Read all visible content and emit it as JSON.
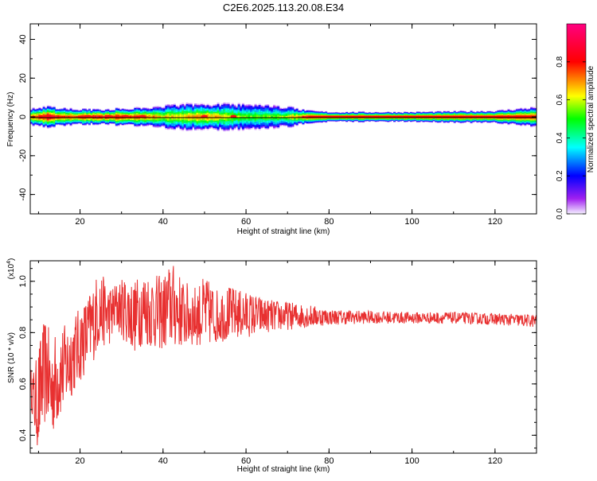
{
  "figure_title": "C2E6.2025.113.20.08.E34",
  "chart_data": [
    {
      "type": "heatmap",
      "xlabel": "Height of straight line (km)",
      "ylabel": "Frequency (Hz)",
      "xlim": [
        8,
        130
      ],
      "ylim": [
        -50,
        48
      ],
      "xticks": [
        "20",
        "40",
        "60",
        "80",
        "100",
        "120"
      ],
      "yticks": [
        "40",
        "20",
        "0",
        "-20",
        "-40"
      ],
      "colorbar": {
        "label": "Normalized spectral amplitude",
        "range": [
          0,
          1
        ],
        "ticks": [
          "0.0",
          "0.2",
          "0.4",
          "0.6",
          "0.8"
        ],
        "colors": [
          "#f4f0ff",
          "#a020f0",
          "#0000ff",
          "#00ffff",
          "#00ff00",
          "#ffff00",
          "#ff0000",
          "#ff0080"
        ]
      },
      "band": {
        "center_hz": 0,
        "profile": [
          {
            "x": 8,
            "halfwidth": 3.5,
            "peak": 0.75
          },
          {
            "x": 12,
            "halfwidth": 4.0,
            "peak": 0.95
          },
          {
            "x": 16,
            "halfwidth": 3.5,
            "peak": 0.8
          },
          {
            "x": 20,
            "halfwidth": 3.0,
            "peak": 0.85
          },
          {
            "x": 25,
            "halfwidth": 3.0,
            "peak": 0.9
          },
          {
            "x": 30,
            "halfwidth": 3.5,
            "peak": 0.85
          },
          {
            "x": 35,
            "halfwidth": 3.5,
            "peak": 0.8
          },
          {
            "x": 40,
            "halfwidth": 4.5,
            "peak": 0.65
          },
          {
            "x": 45,
            "halfwidth": 5.0,
            "peak": 0.7
          },
          {
            "x": 50,
            "halfwidth": 5.0,
            "peak": 0.75
          },
          {
            "x": 55,
            "halfwidth": 5.0,
            "peak": 0.65
          },
          {
            "x": 60,
            "halfwidth": 5.0,
            "peak": 0.55
          },
          {
            "x": 65,
            "halfwidth": 4.5,
            "peak": 0.55
          },
          {
            "x": 70,
            "halfwidth": 4.0,
            "peak": 0.6
          },
          {
            "x": 75,
            "halfwidth": 2.5,
            "peak": 0.9
          },
          {
            "x": 80,
            "halfwidth": 2.0,
            "peak": 0.95
          },
          {
            "x": 100,
            "halfwidth": 2.0,
            "peak": 0.95
          },
          {
            "x": 120,
            "halfwidth": 2.5,
            "peak": 0.95
          },
          {
            "x": 130,
            "halfwidth": 4.0,
            "peak": 0.9
          }
        ]
      }
    },
    {
      "type": "line",
      "xlabel": "Height of straight line (km)",
      "ylabel": "SNR (10 * v/v)",
      "yscale_label": "(x10",
      "yscale_exp": "4",
      "yscale_close": ")",
      "xlim": [
        8,
        130
      ],
      "ylim": [
        0.33,
        1.08
      ],
      "xticks": [
        "20",
        "40",
        "60",
        "80",
        "100",
        "120"
      ],
      "yticks": [
        "1.0",
        "0.8",
        "0.6",
        "0.4"
      ],
      "series": [
        {
          "color": "#e83030",
          "envelope": [
            {
              "x": 8,
              "low": 0.55,
              "high": 0.66
            },
            {
              "x": 9,
              "low": 0.4,
              "high": 0.66
            },
            {
              "x": 10,
              "low": 0.33,
              "high": 0.75
            },
            {
              "x": 11,
              "low": 0.42,
              "high": 0.83
            },
            {
              "x": 12,
              "low": 0.45,
              "high": 0.87
            },
            {
              "x": 13,
              "low": 0.39,
              "high": 0.75
            },
            {
              "x": 14,
              "low": 0.42,
              "high": 0.8
            },
            {
              "x": 15,
              "low": 0.46,
              "high": 0.82
            },
            {
              "x": 17,
              "low": 0.52,
              "high": 0.84
            },
            {
              "x": 19,
              "low": 0.58,
              "high": 0.88
            },
            {
              "x": 21,
              "low": 0.63,
              "high": 0.92
            },
            {
              "x": 23,
              "low": 0.68,
              "high": 0.98
            },
            {
              "x": 24.5,
              "low": 0.74,
              "high": 1.05
            },
            {
              "x": 27,
              "low": 0.75,
              "high": 0.98
            },
            {
              "x": 29,
              "low": 0.8,
              "high": 1.0
            },
            {
              "x": 31,
              "low": 0.76,
              "high": 1.02
            },
            {
              "x": 33,
              "low": 0.72,
              "high": 1.0
            },
            {
              "x": 35,
              "low": 0.75,
              "high": 1.04
            },
            {
              "x": 37,
              "low": 0.74,
              "high": 1.03
            },
            {
              "x": 40,
              "low": 0.73,
              "high": 1.02
            },
            {
              "x": 42,
              "low": 0.74,
              "high": 1.08
            },
            {
              "x": 45,
              "low": 0.74,
              "high": 1.0
            },
            {
              "x": 48,
              "low": 0.75,
              "high": 0.98
            },
            {
              "x": 50,
              "low": 0.74,
              "high": 1.02
            },
            {
              "x": 53,
              "low": 0.76,
              "high": 0.97
            },
            {
              "x": 56,
              "low": 0.77,
              "high": 0.98
            },
            {
              "x": 60,
              "low": 0.78,
              "high": 0.96
            },
            {
              "x": 65,
              "low": 0.8,
              "high": 0.93
            },
            {
              "x": 70,
              "low": 0.81,
              "high": 0.92
            },
            {
              "x": 75,
              "low": 0.82,
              "high": 0.91
            },
            {
              "x": 80,
              "low": 0.83,
              "high": 0.89
            },
            {
              "x": 90,
              "low": 0.835,
              "high": 0.885
            },
            {
              "x": 100,
              "low": 0.835,
              "high": 0.88
            },
            {
              "x": 110,
              "low": 0.835,
              "high": 0.88
            },
            {
              "x": 120,
              "low": 0.83,
              "high": 0.875
            },
            {
              "x": 130,
              "low": 0.82,
              "high": 0.87
            }
          ]
        }
      ]
    }
  ]
}
